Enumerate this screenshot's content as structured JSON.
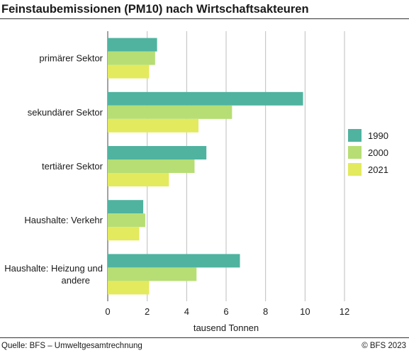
{
  "chart_data": {
    "type": "bar",
    "orientation": "horizontal",
    "title": "Feinstaubemissionen (PM10) nach Wirtschaftsakteuren",
    "xlabel": "tausend Tonnen",
    "ylabel": "",
    "categories": [
      "primärer Sektor",
      "sekundärer Sektor",
      "tertiärer Sektor",
      "Haushalte: Verkehr",
      "Haushalte: Heizung und andere"
    ],
    "category_lines": [
      [
        "primärer Sektor"
      ],
      [
        "sekundärer Sektor"
      ],
      [
        "tertiärer Sektor"
      ],
      [
        "Haushalte: Verkehr"
      ],
      [
        "Haushalte: Heizung und",
        "andere"
      ]
    ],
    "series": [
      {
        "name": "1990",
        "color": "#4fb3a0",
        "values": [
          2.5,
          9.9,
          5.0,
          1.8,
          6.7
        ]
      },
      {
        "name": "2000",
        "color": "#b6de74",
        "values": [
          2.4,
          6.3,
          4.4,
          1.9,
          4.5
        ]
      },
      {
        "name": "2021",
        "color": "#e3ea5e",
        "values": [
          2.1,
          4.6,
          3.1,
          1.6,
          2.1
        ]
      }
    ],
    "xlim": [
      0,
      12
    ],
    "xticks": [
      0,
      2,
      4,
      6,
      8,
      10,
      12
    ],
    "grid": true,
    "legend": "right"
  },
  "footer": {
    "source": "Quelle: BFS – Umweltgesamtrechnung",
    "copyright": "© BFS 2023"
  }
}
